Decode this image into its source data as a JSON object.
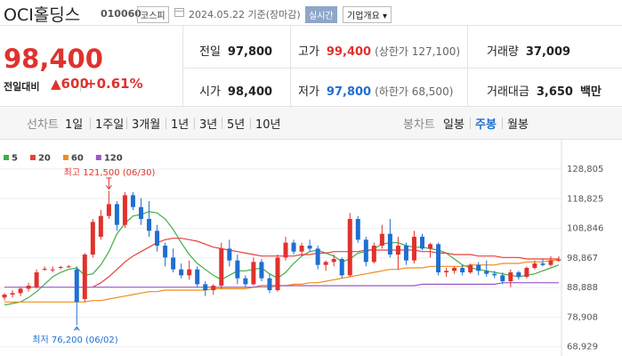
{
  "header": {
    "name": "OCI홀딩스",
    "code": "010060",
    "market": "코스피",
    "date": "2024.05.22",
    "basis": "기준(장마감)",
    "realtime": "실시간",
    "overview": "기업개요"
  },
  "price": {
    "current": "98,400",
    "change_label": "전일대비",
    "change": "▲600",
    "change_rate": "+0.61%"
  },
  "stats": [
    {
      "label": "전일",
      "value": "97,800"
    },
    {
      "label": "고가",
      "value": "99,400",
      "note": "(상한가 127,100)"
    },
    {
      "label": "거래량",
      "value": "37,009"
    },
    {
      "label": "시가",
      "value": "98,400"
    },
    {
      "label": "저가",
      "value": "97,800",
      "note": "(하한가 68,500)"
    },
    {
      "label": "거래대금",
      "value": "3,650",
      "unit": "백만"
    }
  ],
  "tabs": {
    "line_label": "선차트",
    "line_periods": [
      "1일",
      "1주일",
      "3개월",
      "1년",
      "3년",
      "5년",
      "10년"
    ],
    "candle_label": "봉차트",
    "candle_periods": [
      "일봉",
      "주봉",
      "월봉"
    ],
    "selected_candle_period": 1
  },
  "chart_data": {
    "type": "candlestick",
    "up_color": "#e0322d",
    "down_color": "#1f6fd1",
    "grid": true,
    "ylim": [
      66105,
      136005
    ],
    "yticks": [
      {
        "value": 128805,
        "label": "128,805"
      },
      {
        "value": 118825,
        "label": "118,825"
      },
      {
        "value": 108846,
        "label": "108,846"
      },
      {
        "value": 98867,
        "label": "98,867"
      },
      {
        "value": 88888,
        "label": "88,888"
      },
      {
        "value": 78908,
        "label": "78,908"
      },
      {
        "value": 68929,
        "label": "68,929"
      }
    ],
    "annotations": [
      {
        "text": "최고 121,500 (06/30)",
        "color": "#e0322d"
      },
      {
        "text": "최저 76,200 (06/02)",
        "color": "#1f6fd1"
      }
    ],
    "open": [
      85500,
      86500,
      87000,
      88500,
      89000,
      95000,
      95000,
      95500,
      96000,
      95000,
      85000,
      100000,
      106000,
      113000,
      117000,
      110000,
      120000,
      116000,
      112000,
      108000,
      103000,
      99000,
      95000,
      93000,
      95000,
      90000,
      88000,
      89500,
      102000,
      98000,
      92000,
      90000,
      97500,
      92000,
      88000,
      99000,
      104000,
      101000,
      103000,
      102000,
      96500,
      97500,
      98500,
      93000,
      112000,
      105000,
      97500,
      103000,
      107000,
      100000,
      103000,
      98000,
      106000,
      102000,
      103500,
      94000,
      94500,
      95500,
      94000,
      96500,
      94500,
      93500,
      93000,
      91000,
      94000,
      92500,
      95500,
      97000,
      96500,
      98000
    ],
    "high": [
      87000,
      88000,
      89000,
      90500,
      95000,
      96000,
      96000,
      96200,
      96500,
      96000,
      100500,
      112000,
      115000,
      121500,
      118000,
      121000,
      121000,
      119000,
      118000,
      110000,
      104000,
      102000,
      97000,
      98000,
      96000,
      91000,
      90000,
      104000,
      105000,
      100000,
      93000,
      99000,
      98500,
      93500,
      100000,
      106000,
      105000,
      104000,
      105000,
      103000,
      98000,
      100000,
      99000,
      114000,
      113000,
      106000,
      104000,
      110000,
      112000,
      106000,
      104000,
      108000,
      107000,
      104000,
      104000,
      95500,
      96000,
      96500,
      97000,
      97500,
      98000,
      94500,
      94000,
      95000,
      94500,
      96000,
      98000,
      98500,
      99500,
      99400
    ],
    "low": [
      84500,
      85500,
      86000,
      87500,
      88500,
      94500,
      94000,
      95000,
      95500,
      76200,
      84000,
      99000,
      105000,
      112000,
      108000,
      109000,
      115000,
      110000,
      106000,
      101000,
      96000,
      94000,
      92000,
      91500,
      89000,
      86000,
      86500,
      88500,
      96000,
      90000,
      89000,
      89500,
      91000,
      87000,
      87500,
      98000,
      100000,
      99500,
      101000,
      95000,
      94500,
      96000,
      92000,
      92500,
      104000,
      96000,
      97000,
      102000,
      99000,
      95000,
      96500,
      97000,
      101500,
      99000,
      93000,
      92500,
      93500,
      93000,
      93500,
      93000,
      92500,
      92000,
      90000,
      89000,
      91500,
      92000,
      95000,
      96000,
      96000,
      97500
    ],
    "close": [
      86500,
      87000,
      88500,
      89500,
      94000,
      95200,
      95000,
      95800,
      96000,
      84000,
      100000,
      111000,
      113000,
      117000,
      110000,
      120000,
      116000,
      112000,
      108000,
      103000,
      99000,
      95000,
      93000,
      95000,
      90000,
      88000,
      89500,
      102000,
      98000,
      92000,
      90000,
      97500,
      92000,
      88000,
      99000,
      104000,
      101000,
      103000,
      102000,
      96500,
      97500,
      98500,
      93000,
      112000,
      105000,
      97500,
      103000,
      107000,
      100000,
      103000,
      98000,
      106000,
      102000,
      103500,
      94000,
      94500,
      95500,
      94000,
      96500,
      94500,
      93500,
      93000,
      91000,
      94000,
      92500,
      95500,
      97000,
      96500,
      98000,
      98400
    ],
    "series": [
      {
        "name": "5",
        "color": "#3fae49",
        "values": [
          83000,
          83500,
          84000,
          85500,
          87500,
          90000,
          92500,
          94000,
          95000,
          95500,
          93000,
          93500,
          96500,
          101000,
          107000,
          110500,
          113000,
          113500,
          114500,
          114000,
          112000,
          108500,
          104000,
          100000,
          97000,
          95000,
          93000,
          91500,
          93000,
          94500,
          94500,
          95000,
          95500,
          93500,
          92000,
          94000,
          97000,
          99500,
          101000,
          101500,
          100500,
          99500,
          97500,
          98500,
          100500,
          101000,
          102000,
          103500,
          104000,
          104000,
          103000,
          102500,
          102500,
          102000,
          101500,
          100500,
          98500,
          96500,
          95500,
          95000,
          94500,
          94000,
          93500,
          93000,
          92500,
          93000,
          93500,
          94500,
          95500,
          96500
        ]
      },
      {
        "name": "20",
        "color": "#e8403a",
        "values": [
          null,
          null,
          null,
          null,
          null,
          null,
          null,
          null,
          null,
          null,
          null,
          89000,
          90500,
          92500,
          95000,
          97500,
          99500,
          101000,
          102500,
          104000,
          105000,
          105500,
          105500,
          105000,
          104500,
          103500,
          102500,
          102000,
          101500,
          101000,
          100500,
          100000,
          99500,
          99500,
          99500,
          99500,
          99500,
          100000,
          100000,
          100500,
          100500,
          101000,
          101000,
          101000,
          101000,
          101500,
          101500,
          101500,
          101500,
          101500,
          101500,
          101500,
          101000,
          101000,
          100500,
          100500,
          100000,
          100000,
          100000,
          99500,
          99500,
          99500,
          99000,
          99000,
          99000,
          98500,
          98500,
          98500,
          98500,
          98500
        ]
      },
      {
        "name": "60",
        "color": "#f08c1c",
        "values": [
          84000,
          84000,
          84000,
          84000,
          84000,
          84000,
          84000,
          84000,
          84000,
          84000,
          84000,
          84500,
          84500,
          85000,
          85500,
          86000,
          86500,
          87000,
          87500,
          87500,
          88000,
          88000,
          88000,
          88000,
          88000,
          88000,
          88500,
          88500,
          88500,
          88500,
          88500,
          89000,
          89000,
          89000,
          89500,
          89500,
          90000,
          90000,
          90500,
          90500,
          91000,
          91500,
          92000,
          92500,
          93000,
          93500,
          94000,
          94500,
          95000,
          95000,
          95500,
          95500,
          95500,
          96000,
          96000,
          96000,
          96000,
          96000,
          96500,
          96500,
          96500,
          96500,
          97000,
          97000,
          97000,
          97500,
          97500,
          97500,
          98000,
          98000
        ]
      },
      {
        "name": "120",
        "color": "#9b59c7",
        "values": [
          89000,
          89000,
          89000,
          89000,
          89000,
          89000,
          89000,
          89000,
          89000,
          89000,
          89000,
          89000,
          89000,
          89000,
          89000,
          89000,
          89000,
          89000,
          89000,
          89000,
          89000,
          89000,
          89000,
          89000,
          89000,
          89000,
          89000,
          89000,
          89000,
          89000,
          89000,
          89000,
          89500,
          89500,
          89500,
          89500,
          89500,
          89500,
          89500,
          89500,
          89500,
          89500,
          89500,
          89500,
          89500,
          89500,
          89500,
          89500,
          89500,
          89500,
          89500,
          89500,
          90000,
          90000,
          90000,
          90000,
          90000,
          90000,
          90000,
          90000,
          90000,
          90000,
          90500,
          90500,
          90500,
          90500,
          90500,
          90500,
          90500,
          90500
        ]
      }
    ]
  }
}
